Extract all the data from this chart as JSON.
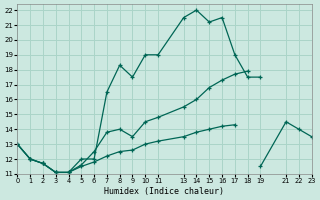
{
  "xlabel": "Humidex (Indice chaleur)",
  "bg_color": "#cce8e0",
  "grid_color": "#aad4c8",
  "line_color": "#006655",
  "xlim": [
    0,
    23
  ],
  "ylim": [
    11,
    22.4
  ],
  "line1_x": [
    0,
    1,
    2,
    3,
    4,
    5,
    6,
    7,
    8,
    9,
    10,
    11,
    13,
    14,
    15,
    16,
    17,
    18,
    19
  ],
  "line1_y": [
    13,
    12,
    11.7,
    11.1,
    11.1,
    12.0,
    12.0,
    16.5,
    18.3,
    17.5,
    19.0,
    19.0,
    21.5,
    22.0,
    21.2,
    21.5,
    19.0,
    17.5,
    17.5
  ],
  "line2_x": [
    0,
    1,
    2,
    3,
    4,
    5,
    6,
    7,
    8,
    9,
    10,
    11,
    13,
    14,
    15,
    16,
    17,
    18
  ],
  "line2_y": [
    13,
    12,
    11.7,
    11.1,
    11.1,
    11.6,
    12.5,
    13.8,
    14.0,
    13.5,
    14.5,
    14.8,
    15.5,
    16.0,
    16.8,
    17.3,
    17.7,
    17.9
  ],
  "line3_x": [
    0,
    1,
    2,
    3,
    4,
    5,
    6,
    7,
    8,
    9,
    10,
    11,
    13,
    14,
    15,
    16,
    17
  ],
  "line3_y": [
    13,
    12,
    11.7,
    11.1,
    11.1,
    11.5,
    11.8,
    12.2,
    12.5,
    12.6,
    13.0,
    13.2,
    13.5,
    13.8,
    14.0,
    14.2,
    14.3
  ],
  "line4_x": [
    19,
    21,
    22,
    23
  ],
  "line4_y": [
    11.5,
    14.5,
    14.0,
    13.5
  ]
}
